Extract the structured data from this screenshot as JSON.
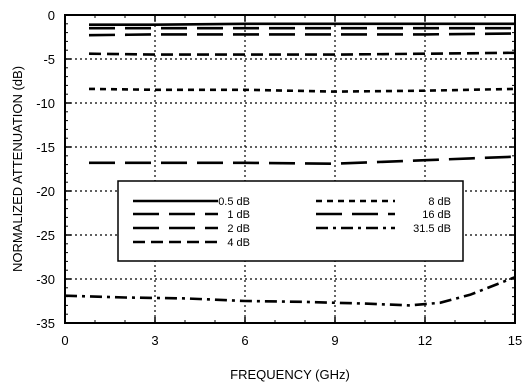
{
  "chart_data": {
    "type": "line",
    "xlabel": "FREQUENCY (GHz)",
    "ylabel": "NORMALIZED ATTENUATION (dB)",
    "xlim": [
      0,
      15
    ],
    "ylim": [
      -35,
      0
    ],
    "xticks": [
      "0",
      "3",
      "6",
      "9",
      "12",
      "15"
    ],
    "yticks": [
      "0",
      "-5",
      "-10",
      "-15",
      "-20",
      "-25",
      "-30",
      "-35"
    ],
    "grid": "dotted at major ticks",
    "legend_position": "center-left, inside plot",
    "series": [
      {
        "name": "0.5 dB",
        "dash": "solid",
        "x": [
          0.8,
          3,
          6,
          9,
          12,
          15
        ],
        "y": [
          -1.1,
          -1.1,
          -1.0,
          -1.0,
          -1.0,
          -1.0
        ]
      },
      {
        "name": "1 dB",
        "dash": "long-dash",
        "x": [
          0.8,
          3,
          6,
          9,
          12,
          15
        ],
        "y": [
          -1.5,
          -1.5,
          -1.5,
          -1.5,
          -1.5,
          -1.5
        ]
      },
      {
        "name": "2 dB",
        "dash": "long-dash",
        "x": [
          0.8,
          3,
          6,
          9,
          12,
          15
        ],
        "y": [
          -2.3,
          -2.2,
          -2.2,
          -2.2,
          -2.2,
          -2.1
        ]
      },
      {
        "name": "4 dB",
        "dash": "medium-dash",
        "x": [
          0.8,
          3,
          6,
          9,
          12,
          15
        ],
        "y": [
          -4.4,
          -4.5,
          -4.5,
          -4.5,
          -4.4,
          -4.3
        ]
      },
      {
        "name": "8 dB",
        "dash": "short-dash",
        "x": [
          0.8,
          3,
          6,
          9,
          12,
          15
        ],
        "y": [
          -8.4,
          -8.5,
          -8.5,
          -8.7,
          -8.6,
          -8.4
        ]
      },
      {
        "name": "16 dB",
        "dash": "long-dash",
        "x": [
          0.8,
          3,
          6,
          9,
          12,
          13.5,
          15
        ],
        "y": [
          -16.8,
          -16.8,
          -16.8,
          -16.9,
          -16.5,
          -16.3,
          -16.1
        ]
      },
      {
        "name": "31.5 dB",
        "dash": "dash-dot",
        "x": [
          0,
          2,
          4,
          6,
          8,
          10,
          11.5,
          12.5,
          13.5,
          15
        ],
        "y": [
          -31.9,
          -32.1,
          -32.2,
          -32.5,
          -32.6,
          -32.8,
          -33.0,
          -32.7,
          -31.8,
          -29.8
        ]
      }
    ]
  },
  "legend": {
    "items": [
      "0.5 dB",
      "1 dB",
      "2 dB",
      "4 dB",
      "8 dB",
      "16 dB",
      "31.5 dB"
    ]
  }
}
